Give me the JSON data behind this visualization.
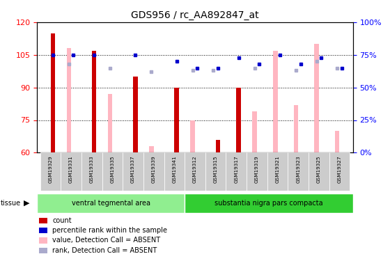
{
  "title": "GDS956 / rc_AA892847_at",
  "samples": [
    "GSM19329",
    "GSM19331",
    "GSM19333",
    "GSM19335",
    "GSM19337",
    "GSM19339",
    "GSM19341",
    "GSM19312",
    "GSM19315",
    "GSM19317",
    "GSM19319",
    "GSM19321",
    "GSM19323",
    "GSM19325",
    "GSM19327"
  ],
  "groups": [
    {
      "label": "ventral tegmental area",
      "color": "#90EE90",
      "start": 0,
      "end": 7
    },
    {
      "label": "substantia nigra pars compacta",
      "color": "#32CD32",
      "start": 7,
      "end": 15
    }
  ],
  "ylim_left": [
    60,
    120
  ],
  "ylim_right": [
    0,
    100
  ],
  "yticks_left": [
    60,
    75,
    90,
    105,
    120
  ],
  "yticks_right": [
    0,
    25,
    50,
    75,
    100
  ],
  "red_bars": [
    115,
    null,
    107,
    null,
    95,
    null,
    90,
    null,
    66,
    90,
    null,
    null,
    null,
    null,
    null
  ],
  "pink_bars": [
    null,
    108,
    null,
    87,
    null,
    63,
    null,
    75,
    null,
    null,
    79,
    107,
    82,
    110,
    70
  ],
  "blue_squares": [
    75,
    75,
    75,
    null,
    75,
    null,
    70,
    65,
    65,
    73,
    68,
    75,
    68,
    73,
    65
  ],
  "lavender_squares": [
    null,
    68,
    null,
    65,
    null,
    62,
    null,
    63,
    63,
    null,
    65,
    null,
    63,
    70,
    65
  ],
  "red_color": "#CC0000",
  "pink_color": "#FFB6C1",
  "blue_color": "#0000CC",
  "lavender_color": "#AAAACC",
  "bar_width": 0.4,
  "tissue_label": "tissue"
}
